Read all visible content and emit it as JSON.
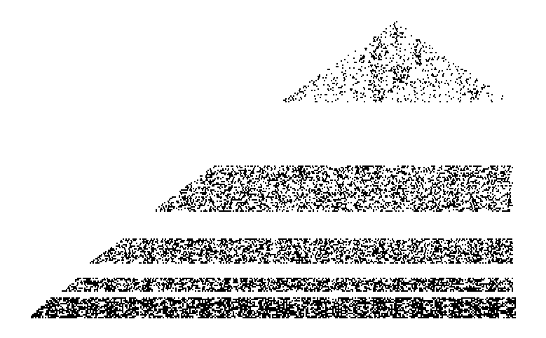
{
  "image": {
    "kind": "cellular-automaton-pattern",
    "background_color": "#ffffff",
    "foreground_color": "#000000",
    "panels": [
      {
        "label": "",
        "tiers": 1
      },
      {
        "label": "",
        "tiers": 3
      },
      {
        "label": "",
        "tiers": 5
      },
      {
        "label": "",
        "tiers": 9
      },
      {
        "label": "",
        "tiers": 17
      }
    ]
  }
}
